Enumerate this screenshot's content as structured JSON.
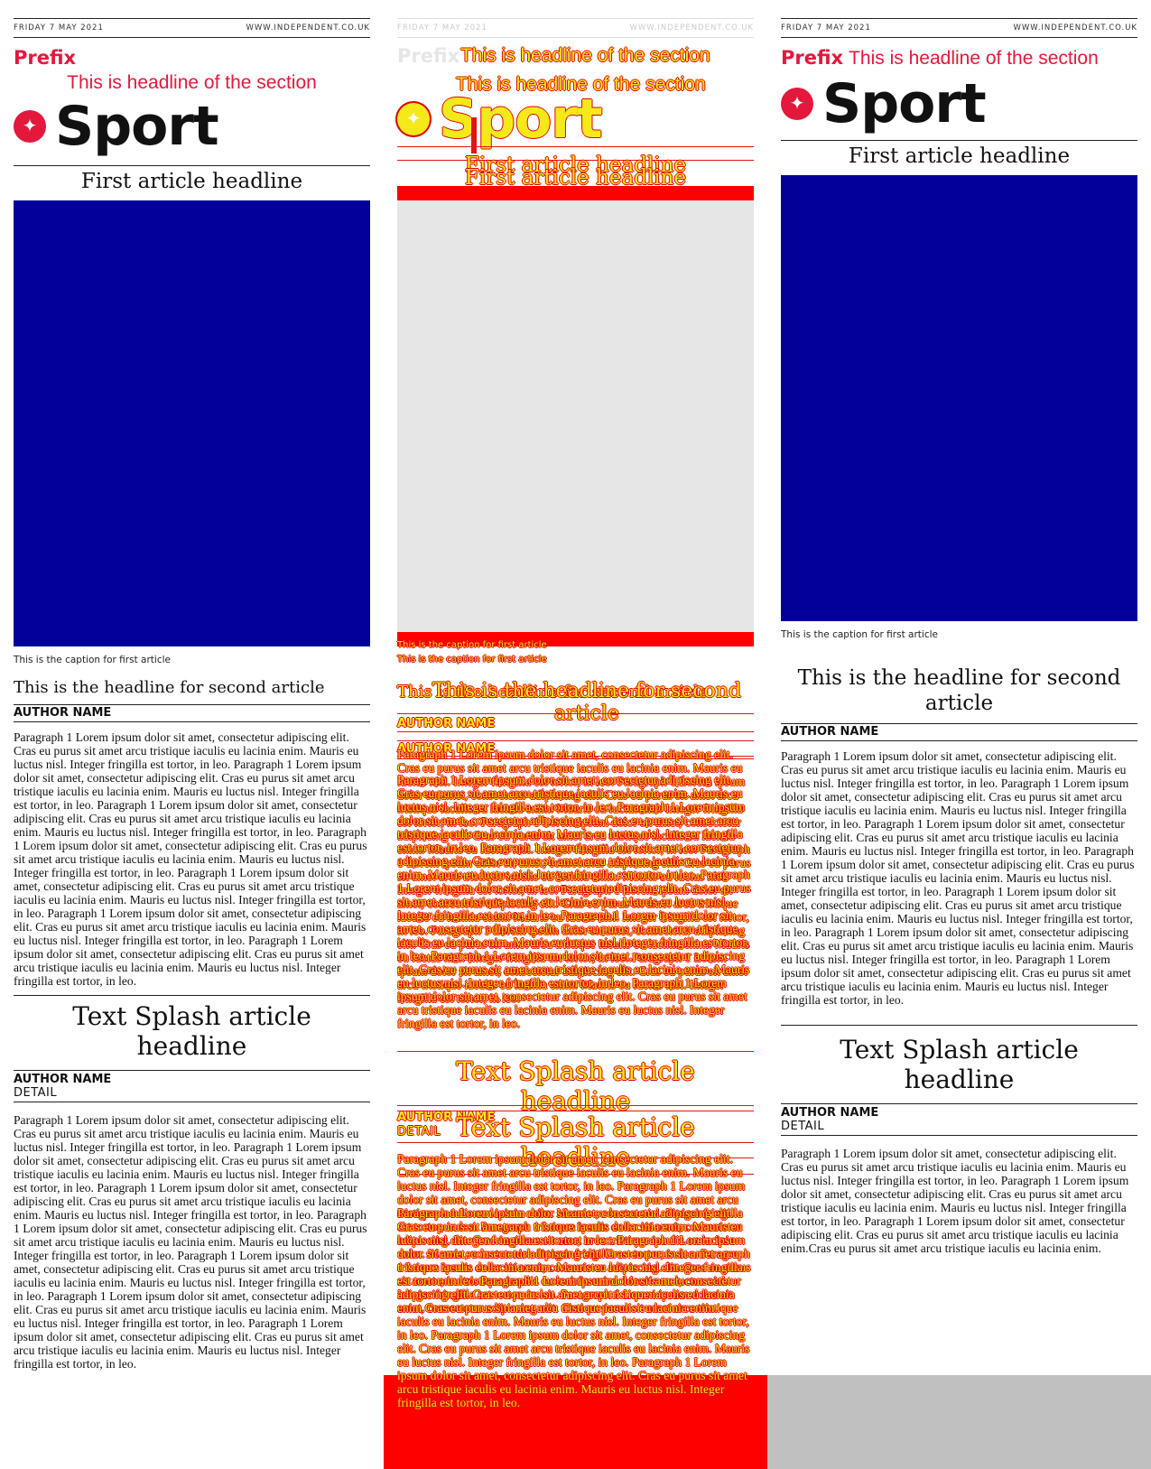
{
  "page": {
    "date": "FRIDAY 7 MAY 2021",
    "website": "WWW.INDEPENDENT.CO.UK",
    "prefix": "Prefix",
    "section_headline": "This is headline of the section",
    "section_title": "Sport",
    "logo_icon": "eagle-icon"
  },
  "first_article": {
    "headline": "First article headline",
    "caption": "This is the caption for first article",
    "image_color": "#03009a"
  },
  "second_article": {
    "headline": "This is the headline for second article",
    "author": "AUTHOR NAME",
    "body": "Paragraph 1 Lorem ipsum dolor sit amet, consectetur adipiscing elit. Cras eu purus sit amet arcu tristique iaculis eu lacinia enim. Mauris eu luctus nisl. Integer fringilla est tortor, in leo. Paragraph 1 Lorem ipsum dolor sit amet, consectetur adipiscing elit. Cras eu purus sit amet arcu tristique iaculis eu lacinia enim. Mauris eu luctus nisl. Integer fringilla est tortor, in leo. Paragraph 1 Lorem ipsum dolor sit amet, consectetur adipiscing elit. Cras eu purus sit amet arcu tristique iaculis eu lacinia enim. Mauris eu luctus nisl. Integer fringilla est tortor, in leo. Paragraph 1 Lorem ipsum dolor sit amet, consectetur adipiscing elit. Cras eu purus sit amet arcu tristique iaculis eu lacinia enim. Mauris eu luctus nisl. Integer fringilla est tortor, in leo. Paragraph 1 Lorem ipsum dolor sit amet, consectetur adipiscing elit. Cras eu purus sit amet arcu tristique iaculis eu lacinia enim. Mauris eu luctus nisl. Integer fringilla est tortor, in leo. Paragraph 1 Lorem ipsum dolor sit amet, consectetur adipiscing elit. Cras eu purus sit amet arcu tristique iaculis eu lacinia enim. Mauris eu luctus nisl. Integer fringilla est tortor, in leo. Paragraph 1 Lorem ipsum dolor sit amet, consectetur adipiscing elit. Cras eu purus sit amet arcu tristique iaculis eu lacinia enim. Mauris eu luctus nisl. Integer fringilla est tortor, in leo."
  },
  "splash_article": {
    "headline": "Text Splash article headline",
    "author": "AUTHOR NAME",
    "detail": "DETAIL",
    "body": "Paragraph 1 Lorem ipsum dolor sit amet, consectetur adipiscing elit. Cras eu purus sit amet arcu tristique iaculis eu lacinia enim. Mauris eu luctus nisl. Integer fringilla est tortor, in leo. Paragraph 1 Lorem ipsum dolor sit amet, consectetur adipiscing elit. Cras eu purus sit amet arcu tristique iaculis eu lacinia enim. Mauris eu luctus nisl. Integer fringilla est tortor, in leo. Paragraph 1 Lorem ipsum dolor sit amet, consectetur adipiscing elit. Cras eu purus sit amet arcu tristique iaculis eu lacinia enim. Mauris eu luctus nisl. Integer fringilla est tortor, in leo. Paragraph 1 Lorem ipsum dolor sit amet, consectetur adipiscing elit. Cras eu purus sit amet arcu tristique iaculis eu lacinia enim. Mauris eu luctus nisl. Integer fringilla est tortor, in leo. Paragraph 1 Lorem ipsum dolor sit amet, consectetur adipiscing elit. Cras eu purus sit amet arcu tristique iaculis eu lacinia enim. Mauris eu luctus nisl. Integer fringilla est tortor, in leo. Paragraph 1 Lorem ipsum dolor sit amet, consectetur adipiscing elit. Cras eu purus sit amet arcu tristique iaculis eu lacinia enim. Mauris eu luctus nisl. Integer fringilla est tortor, in leo. Paragraph 1 Lorem ipsum dolor sit amet, consectetur adipiscing elit. Cras eu purus sit amet arcu tristique iaculis eu lacinia enim. Mauris eu luctus nisl. Integer fringilla est tortor, in leo.",
    "body_short": "Paragraph 1 Lorem ipsum dolor sit amet, consectetur adipiscing elit. Cras eu purus sit amet arcu tristique iaculis eu lacinia enim. Mauris eu luctus nisl. Integer fringilla est tortor, in leo. Paragraph 1 Lorem ipsum dolor sit amet, consectetur adipiscing elit. Cras eu purus sit amet arcu tristique iaculis eu lacinia enim. Mauris eu luctus nisl. Integer fringilla est tortor, in leo. Paragraph 1 Lorem ipsum dolor sit amet, consectetur adipiscing elit. Cras eu purus sit amet arcu tristique iaculis eu lacinia enim.Cras eu purus sit amet arcu tristique iaculis eu lacinia enim."
  },
  "colors": {
    "accent": "#e3183c",
    "diff_red": "#ff0000",
    "diff_yellow": "#f6e91a",
    "diff_image_bg": "#e6e6e6",
    "footer_gray": "#c0c0c0"
  }
}
